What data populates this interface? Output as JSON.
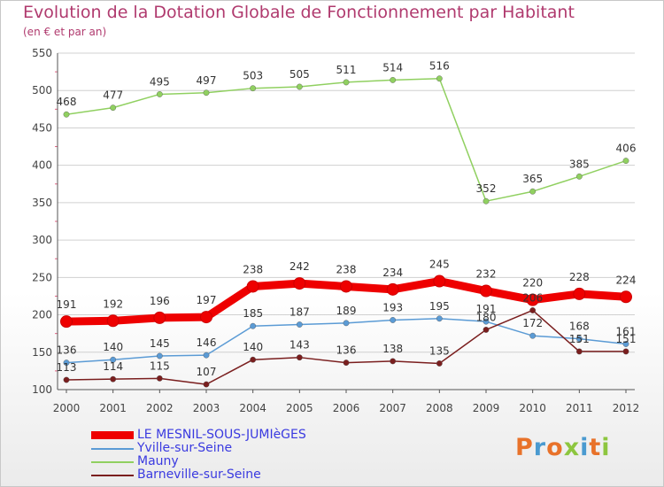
{
  "title": "Evolution de la Dotation Globale de Fonctionnement par Habitant",
  "subtitle": "(en € et par an)",
  "logo": {
    "text": "Proxiti",
    "colors": [
      "#e8722a",
      "#4a9ad0",
      "#e8722a",
      "#8dc63f",
      "#4a9ad0",
      "#e8722a",
      "#8dc63f"
    ]
  },
  "chart_data": {
    "type": "line",
    "title": "Evolution de la Dotation Globale de Fonctionnement par Habitant",
    "ylabel": "(en € et par an)",
    "xlabel": "",
    "categories": [
      "2000",
      "2001",
      "2002",
      "2003",
      "2004",
      "2005",
      "2006",
      "2007",
      "2008",
      "2009",
      "2010",
      "2011",
      "2012"
    ],
    "ylim": [
      100,
      550
    ],
    "yticks": [
      100,
      150,
      200,
      250,
      300,
      350,
      400,
      450,
      500,
      550
    ],
    "series": [
      {
        "name": "LE MESNIL-SOUS-JUMIèGES",
        "color": "#ee0000",
        "width": 9,
        "values": [
          191,
          192,
          196,
          197,
          238,
          242,
          238,
          234,
          245,
          232,
          220,
          228,
          224
        ]
      },
      {
        "name": "Yville-sur-Seine",
        "color": "#5b9bd5",
        "width": 1.5,
        "values": [
          136,
          140,
          145,
          146,
          185,
          187,
          189,
          193,
          195,
          191,
          172,
          168,
          161
        ]
      },
      {
        "name": "Mauny",
        "color": "#90d060",
        "width": 1.5,
        "values": [
          468,
          477,
          495,
          497,
          503,
          505,
          511,
          514,
          516,
          352,
          365,
          385,
          406
        ]
      },
      {
        "name": "Barneville-sur-Seine",
        "color": "#7a1e1e",
        "width": 1.5,
        "values": [
          113,
          114,
          115,
          107,
          140,
          143,
          136,
          138,
          135,
          180,
          206,
          151,
          151
        ]
      }
    ],
    "legend_position": "bottom-left"
  }
}
